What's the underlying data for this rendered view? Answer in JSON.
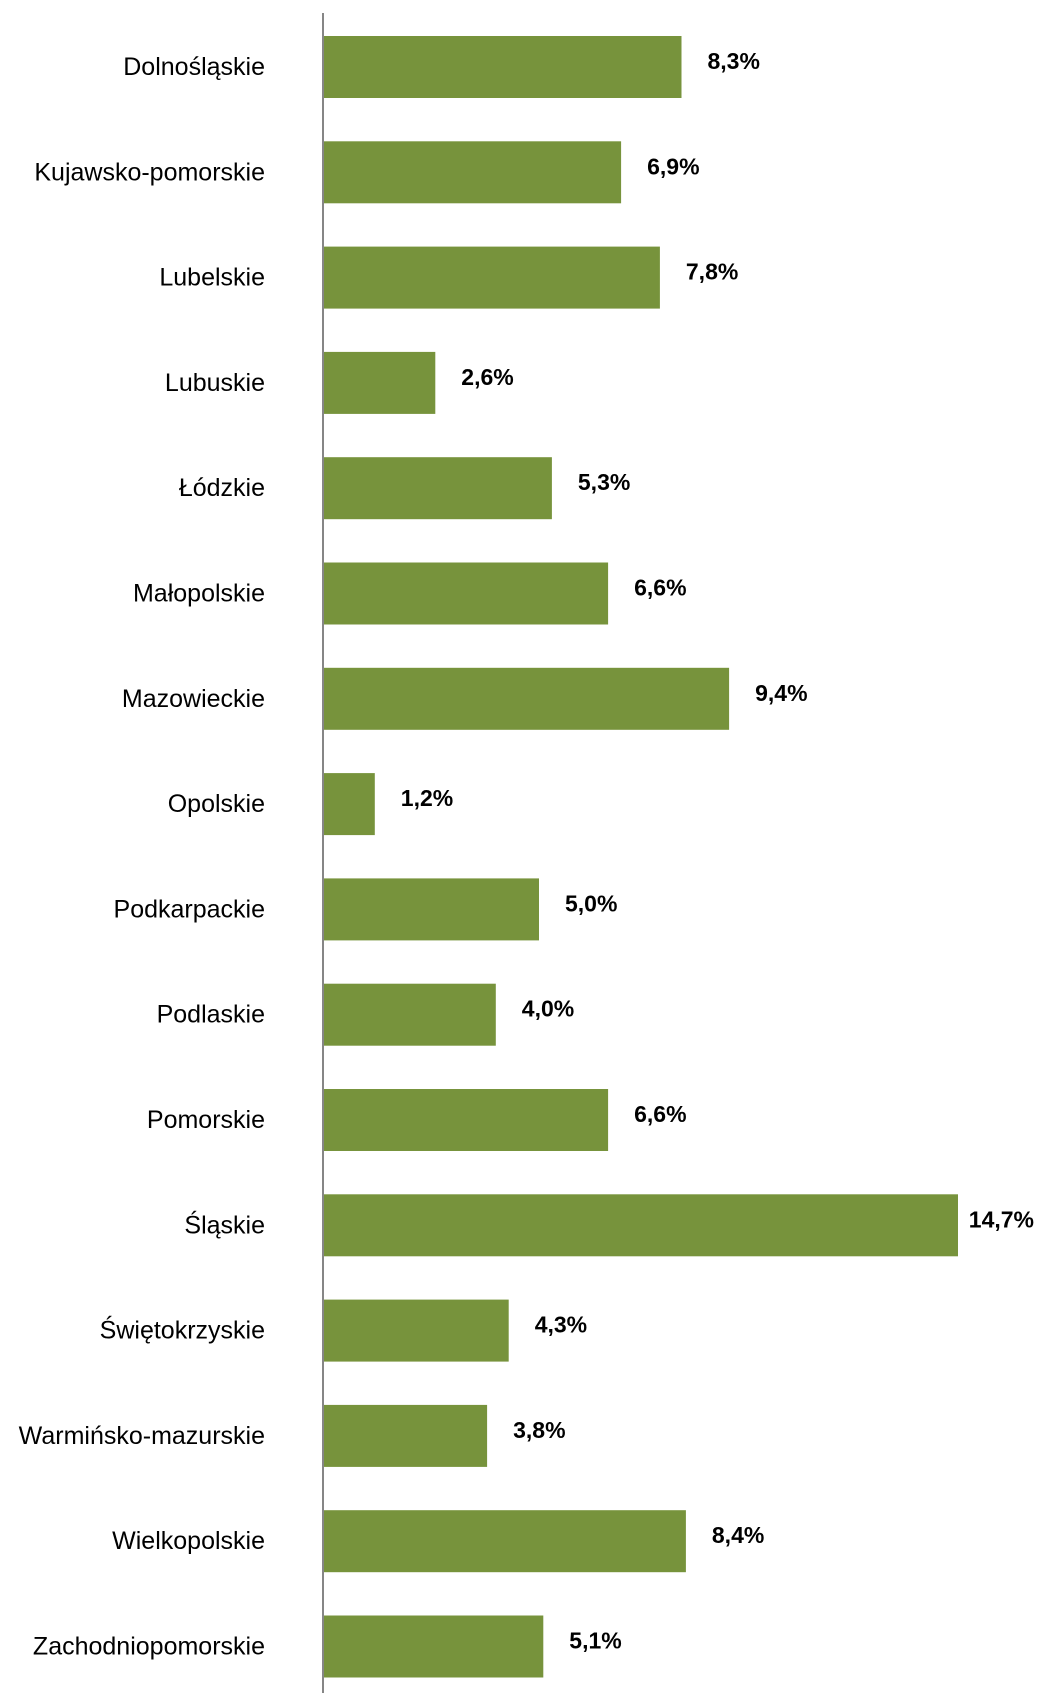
{
  "chart_data": {
    "type": "bar",
    "orientation": "horizontal",
    "categories": [
      "Dolnośląskie",
      "Kujawsko-pomorskie",
      "Lubelskie",
      "Lubuskie",
      "Łódzkie",
      "Małopolskie",
      "Mazowieckie",
      "Opolskie",
      "Podkarpackie",
      "Podlaskie",
      "Pomorskie",
      "Śląskie",
      "Świętokrzyskie",
      "Warmińsko-mazurskie",
      "Wielkopolskie",
      "Zachodniopomorskie"
    ],
    "values": [
      8.3,
      6.9,
      7.8,
      2.6,
      5.3,
      6.6,
      9.4,
      1.2,
      5.0,
      4.0,
      6.6,
      14.7,
      4.3,
      3.8,
      8.4,
      5.1
    ],
    "value_labels": [
      "8,3%",
      "6,9%",
      "7,8%",
      "2,6%",
      "5,3%",
      "6,6%",
      "9,4%",
      "1,2%",
      "5,0%",
      "4,0%",
      "6,6%",
      "14,7%",
      "4,3%",
      "3,8%",
      "8,4%",
      "5,1%"
    ],
    "title": "",
    "xlabel": "",
    "ylabel": "",
    "xlim": [
      0,
      14.7
    ],
    "grid": false,
    "legend": "none",
    "colors": {
      "bar": "#77933c",
      "axis": "#868686",
      "text": "#000000"
    }
  }
}
